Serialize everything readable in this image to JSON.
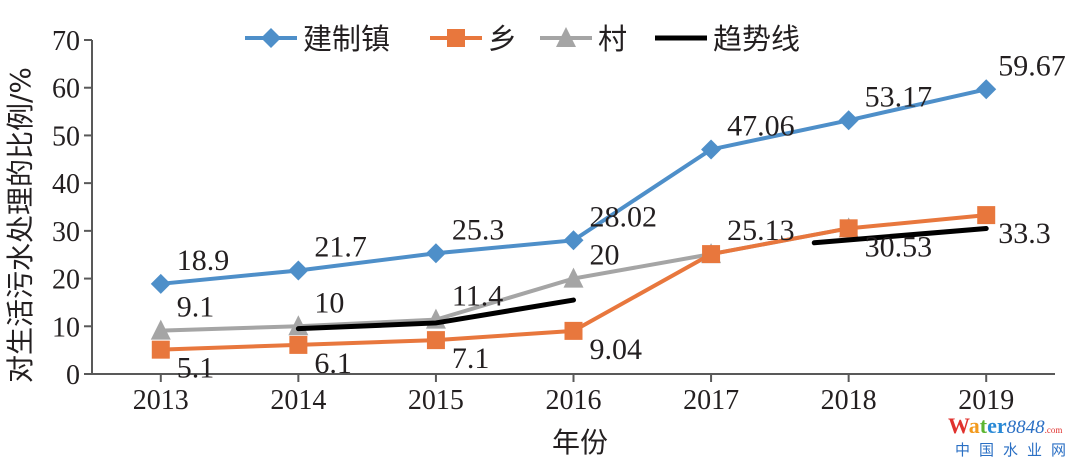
{
  "chart_data": {
    "type": "line",
    "title": "",
    "xlabel": "年份",
    "ylabel": "对生活污水处理的比例/%",
    "categories": [
      "2013",
      "2014",
      "2015",
      "2016",
      "2017",
      "2018",
      "2019"
    ],
    "ylim": [
      0,
      70
    ],
    "yticks": [
      0,
      10,
      20,
      30,
      40,
      50,
      60,
      70
    ],
    "grid": false,
    "legend_position": "top",
    "series": [
      {
        "name": "建制镇",
        "color": "#4e8fc9",
        "marker": "diamond",
        "values": [
          18.9,
          21.7,
          25.3,
          28.02,
          47.06,
          53.17,
          59.67
        ],
        "labels": [
          "18.9",
          "21.7",
          "25.3",
          "28.02",
          "47.06",
          "53.17",
          "59.67"
        ]
      },
      {
        "name": "乡",
        "color": "#e8773d",
        "marker": "square",
        "values": [
          5.1,
          6.1,
          7.1,
          9.04,
          25.13,
          30.53,
          33.3
        ],
        "labels": [
          "5.1",
          "6.1",
          "7.1",
          "9.04",
          "",
          "30.53",
          "33.3"
        ]
      },
      {
        "name": "村",
        "color": "#a5a5a5",
        "marker": "triangle",
        "values": [
          9.1,
          10,
          11.4,
          20,
          25.13,
          30.53,
          null
        ],
        "labels": [
          "9.1",
          "10",
          "11.4",
          "20",
          "25.13",
          "",
          ""
        ]
      },
      {
        "name": "趋势线",
        "color": "#000000",
        "marker": "none",
        "segments": [
          [
            [
              1,
              9.5
            ],
            [
              2,
              10.7
            ],
            [
              3,
              15.5
            ]
          ],
          [
            [
              4.75,
              27.5
            ],
            [
              6,
              30.5
            ]
          ]
        ]
      }
    ]
  },
  "watermark": {
    "brand": "Water8848.com",
    "subtitle": "中国水业网"
  }
}
